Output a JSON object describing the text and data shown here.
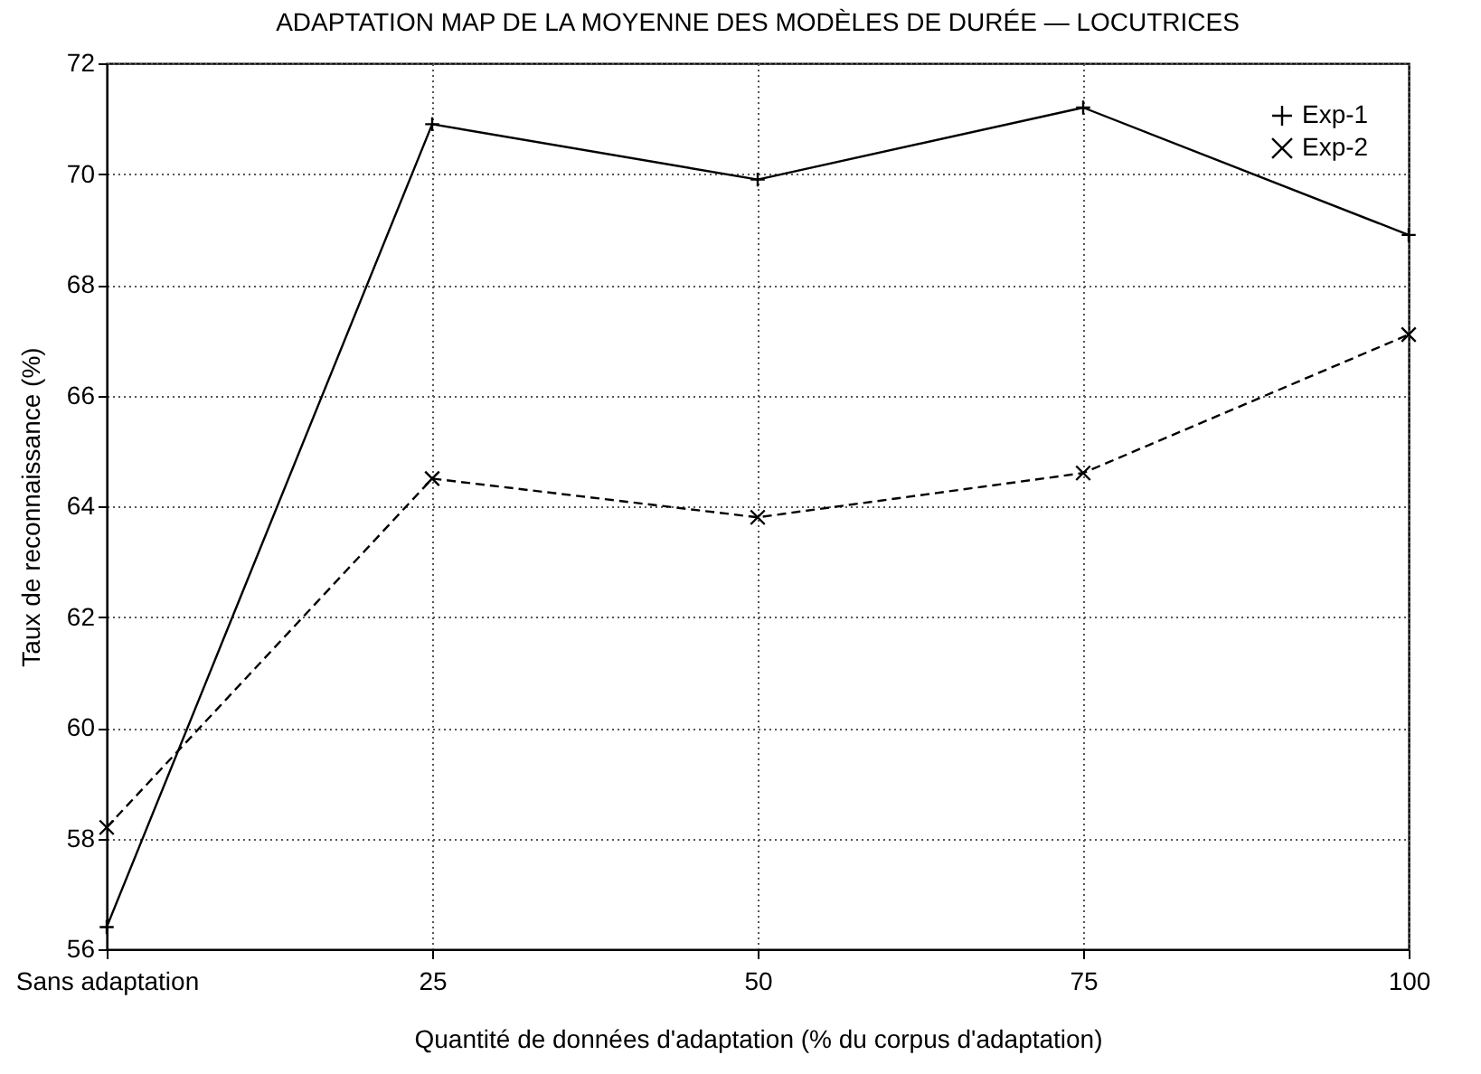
{
  "chart_data": {
    "type": "line",
    "title": "ADAPTATION MAP DE LA MOYENNE DES MODÈLES DE DURÉE — LOCUTRICES",
    "xlabel": "Quantité de données d'adaptation (% du corpus d'adaptation)",
    "ylabel": "Taux de reconnaissance (%)",
    "categories": [
      "Sans adaptation",
      "25",
      "50",
      "75",
      "100"
    ],
    "series": [
      {
        "name": "Exp-1",
        "color": "#000000",
        "line_style": "solid",
        "marker": "cross",
        "values": [
          56.4,
          70.9,
          69.9,
          71.2,
          68.9
        ]
      },
      {
        "name": "Exp-2",
        "color": "#000000",
        "line_style": "dashed",
        "marker": "x",
        "values": [
          58.2,
          64.5,
          63.8,
          64.6,
          67.1
        ]
      }
    ],
    "ylim": [
      56,
      72
    ],
    "yticks": [
      56,
      58,
      60,
      62,
      64,
      66,
      68,
      70,
      72
    ],
    "grid": true,
    "legend": "top right"
  }
}
